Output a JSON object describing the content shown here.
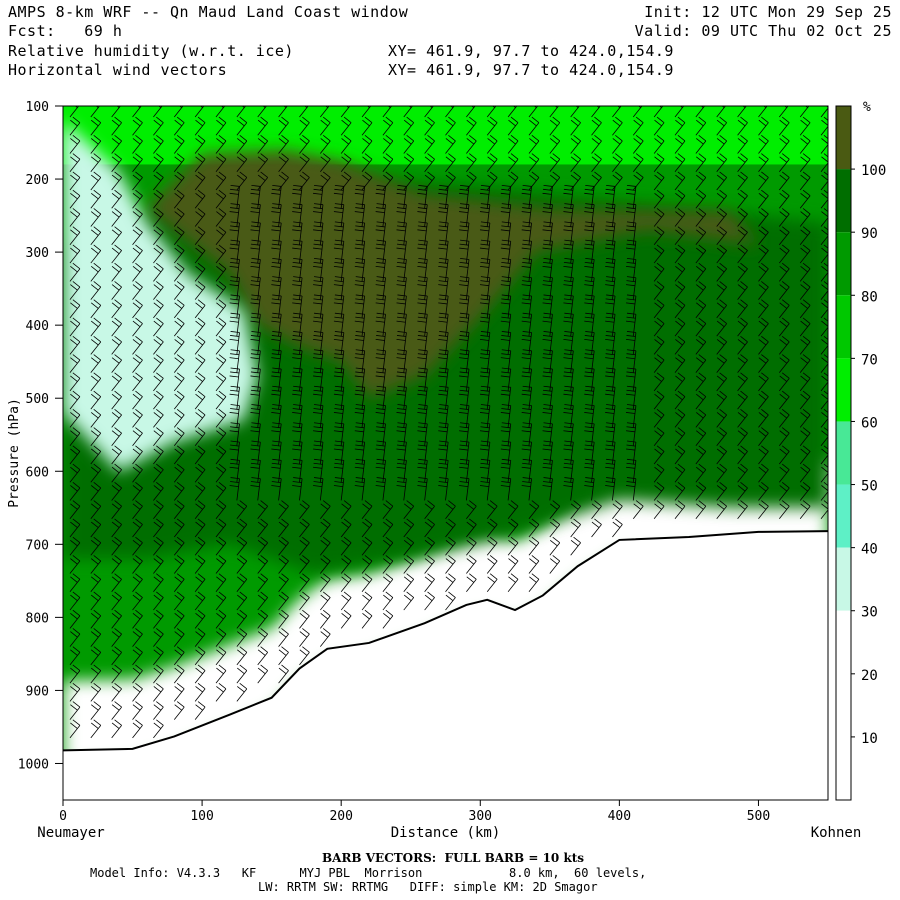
{
  "header": {
    "title": "AMPS 8-km WRF -- Qn Maud Land Coast window",
    "forecast": "Fcst:   69 h",
    "var1": "Relative humidity (w.r.t. ice)",
    "var2": "Horizontal wind vectors",
    "xy1": "XY= 461.9, 97.7 to 424.0,154.9",
    "xy2": "XY= 461.9, 97.7 to 424.0,154.9",
    "init": "Init: 12 UTC Mon 29 Sep 25",
    "valid": "Valid: 09 UTC Thu 02 Oct 25"
  },
  "footer": {
    "barb": "BARB VECTORS:  FULL BARB = 10 kts",
    "model1": "Model Info: V4.3.3   KF      MYJ PBL  Morrison            8.0 km,  60 levels,",
    "model2": "LW: RRTM SW: RRTMG   DIFF: simple KM: 2D Smagor"
  },
  "chart_data": {
    "type": "heatmap",
    "title": "Relative humidity (w.r.t. ice)",
    "xlabel": "Distance (km)",
    "ylabel": "Pressure (hPa)",
    "x_left_label": "Neumayer",
    "x_right_label": "Kohnen",
    "xlim": [
      0,
      550
    ],
    "ylim": [
      1050,
      100
    ],
    "x_ticks": [
      0,
      100,
      200,
      300,
      400,
      500
    ],
    "y_ticks": [
      100,
      200,
      300,
      400,
      500,
      600,
      700,
      800,
      900,
      1000
    ],
    "colorbar": {
      "unit": "%",
      "levels": [
        10,
        20,
        30,
        40,
        50,
        60,
        70,
        80,
        90,
        100
      ],
      "colors": [
        "#ffffff",
        "#ffffff",
        "#ffffff",
        "#c8f8e6",
        "#5ef0c6",
        "#48e896",
        "#00ee00",
        "#00c800",
        "#009a00",
        "#006e00",
        "#4a5a12"
      ]
    },
    "terrain_surface_hPa": [
      {
        "x": 0,
        "p": 982
      },
      {
        "x": 50,
        "p": 980
      },
      {
        "x": 80,
        "p": 963
      },
      {
        "x": 120,
        "p": 933
      },
      {
        "x": 150,
        "p": 910
      },
      {
        "x": 170,
        "p": 870
      },
      {
        "x": 190,
        "p": 843
      },
      {
        "x": 220,
        "p": 835
      },
      {
        "x": 260,
        "p": 808
      },
      {
        "x": 290,
        "p": 783
      },
      {
        "x": 305,
        "p": 776
      },
      {
        "x": 325,
        "p": 790
      },
      {
        "x": 345,
        "p": 770
      },
      {
        "x": 370,
        "p": 730
      },
      {
        "x": 400,
        "p": 694
      },
      {
        "x": 450,
        "p": 690
      },
      {
        "x": 500,
        "p": 683
      },
      {
        "x": 550,
        "p": 682
      }
    ],
    "rh_regions": [
      {
        "level_pct": 95,
        "points": [
          [
            0,
            290
          ],
          [
            0,
            720
          ],
          [
            60,
            720
          ],
          [
            120,
            700
          ],
          [
            180,
            740
          ],
          [
            250,
            720
          ],
          [
            320,
            690
          ],
          [
            400,
            640
          ],
          [
            480,
            650
          ],
          [
            550,
            650
          ],
          [
            550,
            260
          ],
          [
            450,
            240
          ],
          [
            300,
            210
          ],
          [
            150,
            190
          ],
          [
            80,
            230
          ]
        ]
      },
      {
        "level_pct": 100,
        "points": [
          [
            60,
            240
          ],
          [
            100,
            165
          ],
          [
            160,
            160
          ],
          [
            200,
            175
          ],
          [
            260,
            220
          ],
          [
            350,
            240
          ],
          [
            480,
            245
          ],
          [
            500,
            290
          ],
          [
            420,
            270
          ],
          [
            340,
            300
          ],
          [
            300,
            390
          ],
          [
            260,
            470
          ],
          [
            220,
            500
          ],
          [
            200,
            450
          ],
          [
            170,
            430
          ],
          [
            140,
            400
          ],
          [
            120,
            330
          ],
          [
            90,
            285
          ]
        ]
      },
      {
        "level_pct": 35,
        "points": [
          [
            0,
            120
          ],
          [
            0,
            520
          ],
          [
            40,
            600
          ],
          [
            80,
            560
          ],
          [
            130,
            530
          ],
          [
            140,
            470
          ],
          [
            130,
            380
          ],
          [
            90,
            330
          ],
          [
            60,
            260
          ],
          [
            40,
            190
          ]
        ]
      }
    ],
    "wind_barbs": "Horizontal wind barbs plotted on a regular grid; full barb = 10 kts"
  }
}
